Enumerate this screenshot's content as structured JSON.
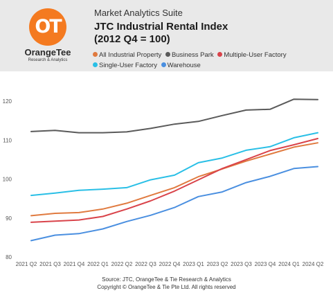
{
  "header": {
    "logo_mark": "OT",
    "logo_name": "OrangeTee",
    "logo_tagline": "Research & Analytics",
    "suite": "Market Analytics Suite",
    "title_line1": "JTC Industrial Rental Index",
    "title_line2": "(2012 Q4 = 100)"
  },
  "footer": {
    "source": "Source: JTC, OrangeTee & Tie Research & Analytics",
    "copyright": "Copyright © OrangeTee & Tie Pte Ltd. All rights reserved"
  },
  "chart_data": {
    "type": "line",
    "title": "JTC Industrial Rental Index (2012 Q4 = 100)",
    "xlabel": "",
    "ylabel": "",
    "categories": [
      "2021 Q2",
      "2021 Q3",
      "2021 Q4",
      "2022 Q1",
      "2022 Q2",
      "2022 Q3",
      "2022 Q4",
      "2023 Q1",
      "2023 Q2",
      "2023 Q3",
      "2023 Q4",
      "2024 Q1",
      "2024 Q2"
    ],
    "ylim": [
      80,
      120
    ],
    "yticks": [
      80,
      90,
      100,
      110,
      120
    ],
    "grid": false,
    "legend": "top",
    "series": [
      {
        "name": "All Industrial Property",
        "color": "#e07a3f",
        "values": [
          90.6,
          91.2,
          91.4,
          92.3,
          93.8,
          95.8,
          97.8,
          100.6,
          102.6,
          104.6,
          106.4,
          108.2,
          109.3
        ]
      },
      {
        "name": "Business Park",
        "color": "#5a5a5a",
        "values": [
          112.2,
          112.5,
          111.9,
          111.9,
          112.1,
          113.0,
          114.1,
          114.8,
          116.3,
          117.7,
          117.9,
          120.5,
          120.4
        ]
      },
      {
        "name": "Multiple-User Factory",
        "color": "#d9434a",
        "values": [
          88.9,
          89.2,
          89.5,
          90.4,
          92.3,
          94.4,
          96.9,
          99.8,
          102.7,
          105.0,
          107.3,
          108.8,
          110.4
        ]
      },
      {
        "name": "Single-User Factory",
        "color": "#29bfe6",
        "values": [
          95.8,
          96.4,
          97.1,
          97.4,
          97.8,
          99.8,
          101.0,
          104.2,
          105.4,
          107.4,
          108.3,
          110.6,
          111.9
        ]
      },
      {
        "name": "Warehouse",
        "color": "#4a8fe0",
        "values": [
          84.2,
          85.6,
          86.0,
          87.2,
          89.1,
          90.7,
          92.7,
          95.5,
          96.7,
          99.1,
          100.7,
          102.7,
          103.2
        ]
      }
    ]
  }
}
